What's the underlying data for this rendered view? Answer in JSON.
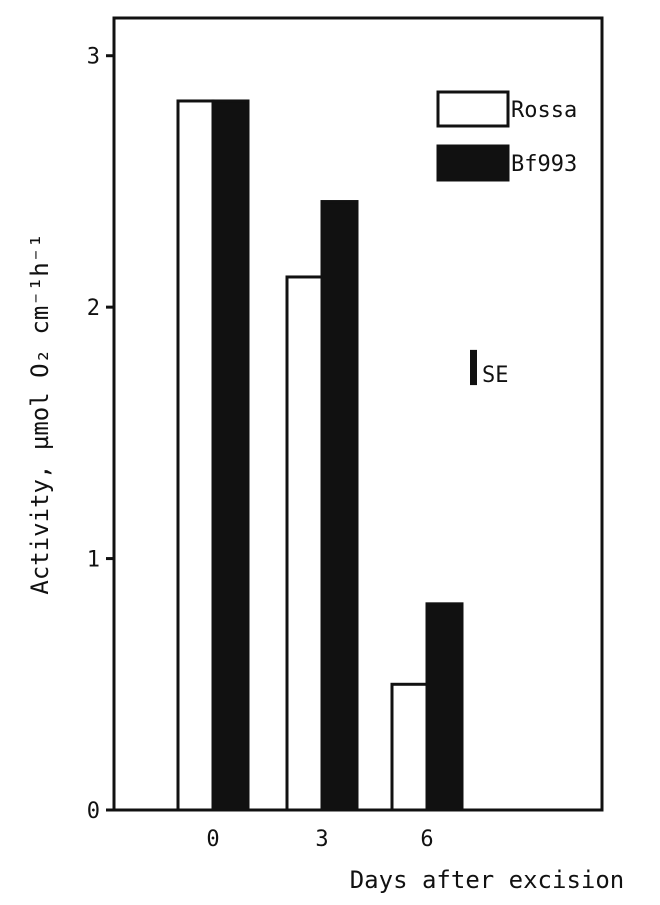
{
  "chart_data": {
    "type": "bar",
    "categories": [
      "0",
      "3",
      "6"
    ],
    "series": [
      {
        "name": "Rossa",
        "values": [
          2.82,
          2.12,
          0.5
        ],
        "fill": "#ffffff"
      },
      {
        "name": "Bf993",
        "values": [
          2.82,
          2.42,
          0.82
        ],
        "fill": "#111111"
      }
    ],
    "ylim": [
      0,
      3.15
    ],
    "yticks": [
      0,
      1,
      2,
      3
    ],
    "xlabel": "Days after excision",
    "ylabel": "Activity,  µmol O₂ cm⁻¹h⁻¹",
    "legend": {
      "position": "top-right"
    },
    "se_label": "SE",
    "se_bar": {
      "center": 1.76,
      "half_width": 0.07
    },
    "grid": false
  }
}
